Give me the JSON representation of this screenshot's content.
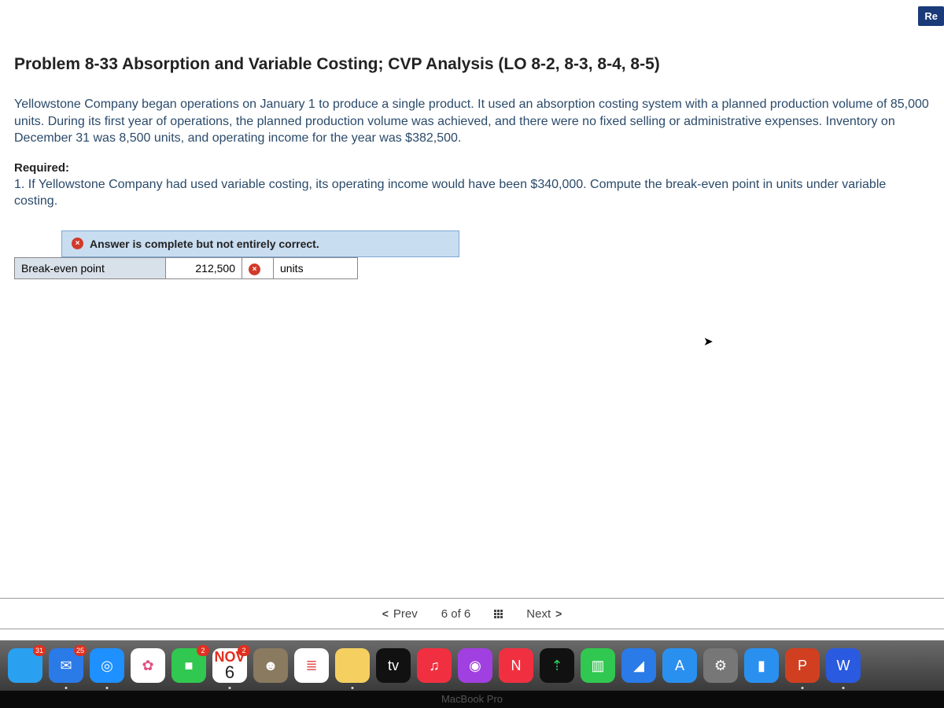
{
  "top_badge": "Re",
  "heading": "Problem 8-33 Absorption and Variable Costing; CVP Analysis (LO 8-2, 8-3, 8-4, 8-5)",
  "body": "Yellowstone Company began operations on January 1 to produce a single product. It used an absorption costing system with a planned production volume of 85,000 units. During its first year of operations, the planned production volume was achieved, and there were no fixed selling or administrative expenses. Inventory on December 31 was 8,500 units, and operating income for the year was $382,500.",
  "required_label": "Required:",
  "required_text": "1. If Yellowstone Company had used variable costing, its operating income would have been $340,000. Compute the break-even point in units under variable costing.",
  "feedback": {
    "icon": "×",
    "text": "Answer is complete but not entirely correct."
  },
  "answer": {
    "label": "Break-even point",
    "value": "212,500",
    "mark_icon": "×",
    "units": "units"
  },
  "nav": {
    "prev": "Prev",
    "position": "6 of 6",
    "next": "Next"
  },
  "calendar": {
    "month": "NOV",
    "day": "6",
    "badge": "2"
  },
  "mail_badge": "25",
  "finder_badge": "31",
  "dock_apps": [
    {
      "name": "finder",
      "bg": "#2aa0f0",
      "txt": "",
      "badge": "31"
    },
    {
      "name": "mail",
      "bg": "#2a7ae8",
      "txt": "✉",
      "badge": "25"
    },
    {
      "name": "safari",
      "bg": "#1e90ff",
      "txt": "◎"
    },
    {
      "name": "photos",
      "bg": "#fff",
      "txt": "✿",
      "color": "#e05080"
    },
    {
      "name": "facetime",
      "bg": "#30c850",
      "txt": "■",
      "badge": "2"
    },
    {
      "name": "calendar",
      "bg": "#fff",
      "txt": ""
    },
    {
      "name": "contacts",
      "bg": "#8a7a60",
      "txt": "☻"
    },
    {
      "name": "reminders",
      "bg": "#fff",
      "txt": "≣",
      "color": "#e05050"
    },
    {
      "name": "notes",
      "bg": "#f5d060",
      "txt": ""
    },
    {
      "name": "tv",
      "bg": "#111",
      "txt": "tv"
    },
    {
      "name": "music",
      "bg": "#f03040",
      "txt": "♫"
    },
    {
      "name": "podcasts",
      "bg": "#a040e0",
      "txt": "◉"
    },
    {
      "name": "news",
      "bg": "#f03040",
      "txt": "N"
    },
    {
      "name": "stocks",
      "bg": "#111",
      "txt": "⇡",
      "color": "#30d060"
    },
    {
      "name": "numbers",
      "bg": "#30c850",
      "txt": "▥"
    },
    {
      "name": "keynote",
      "bg": "#2a7ae8",
      "txt": "◢"
    },
    {
      "name": "appstore",
      "bg": "#2a90f0",
      "txt": "A"
    },
    {
      "name": "settings",
      "bg": "#777",
      "txt": "⚙"
    },
    {
      "name": "camera",
      "bg": "#2a90f0",
      "txt": "▮"
    },
    {
      "name": "powerpoint",
      "bg": "#d04020",
      "txt": "P"
    },
    {
      "name": "word",
      "bg": "#2a5ae0",
      "txt": "W"
    }
  ],
  "bezel": "MacBook Pro"
}
